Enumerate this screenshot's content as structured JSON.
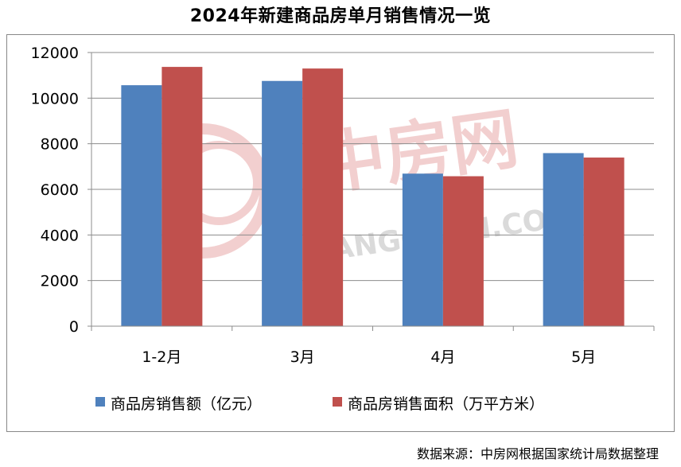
{
  "title": "2024年新建商品房单月销售情况一览",
  "source": "数据来源：中房网根据国家统计局数据整理",
  "watermark": {
    "cn_text": "中房网",
    "en_text": "FANGCHAN.COM"
  },
  "colors": {
    "sales_amount": "#4f81bd",
    "sales_area": "#c0504d",
    "watermark": "#e8a8a8",
    "watermark_gray": "#bdbdbd"
  },
  "chart_data": {
    "type": "bar",
    "title": "2024年新建商品房单月销售情况一览",
    "categories": [
      "1-2月",
      "3月",
      "4月",
      "5月"
    ],
    "series": [
      {
        "name": "商品房销售额（亿元）",
        "values": [
          10566,
          10753,
          6689,
          7589
        ]
      },
      {
        "name": "商品房销售面积（万平方米）",
        "values": [
          11369,
          11298,
          6575,
          7394
        ]
      }
    ],
    "ylim": [
      0,
      12000
    ],
    "yticks": [
      0,
      2000,
      4000,
      6000,
      8000,
      10000,
      12000
    ],
    "grid": true,
    "legend": "bottom"
  }
}
